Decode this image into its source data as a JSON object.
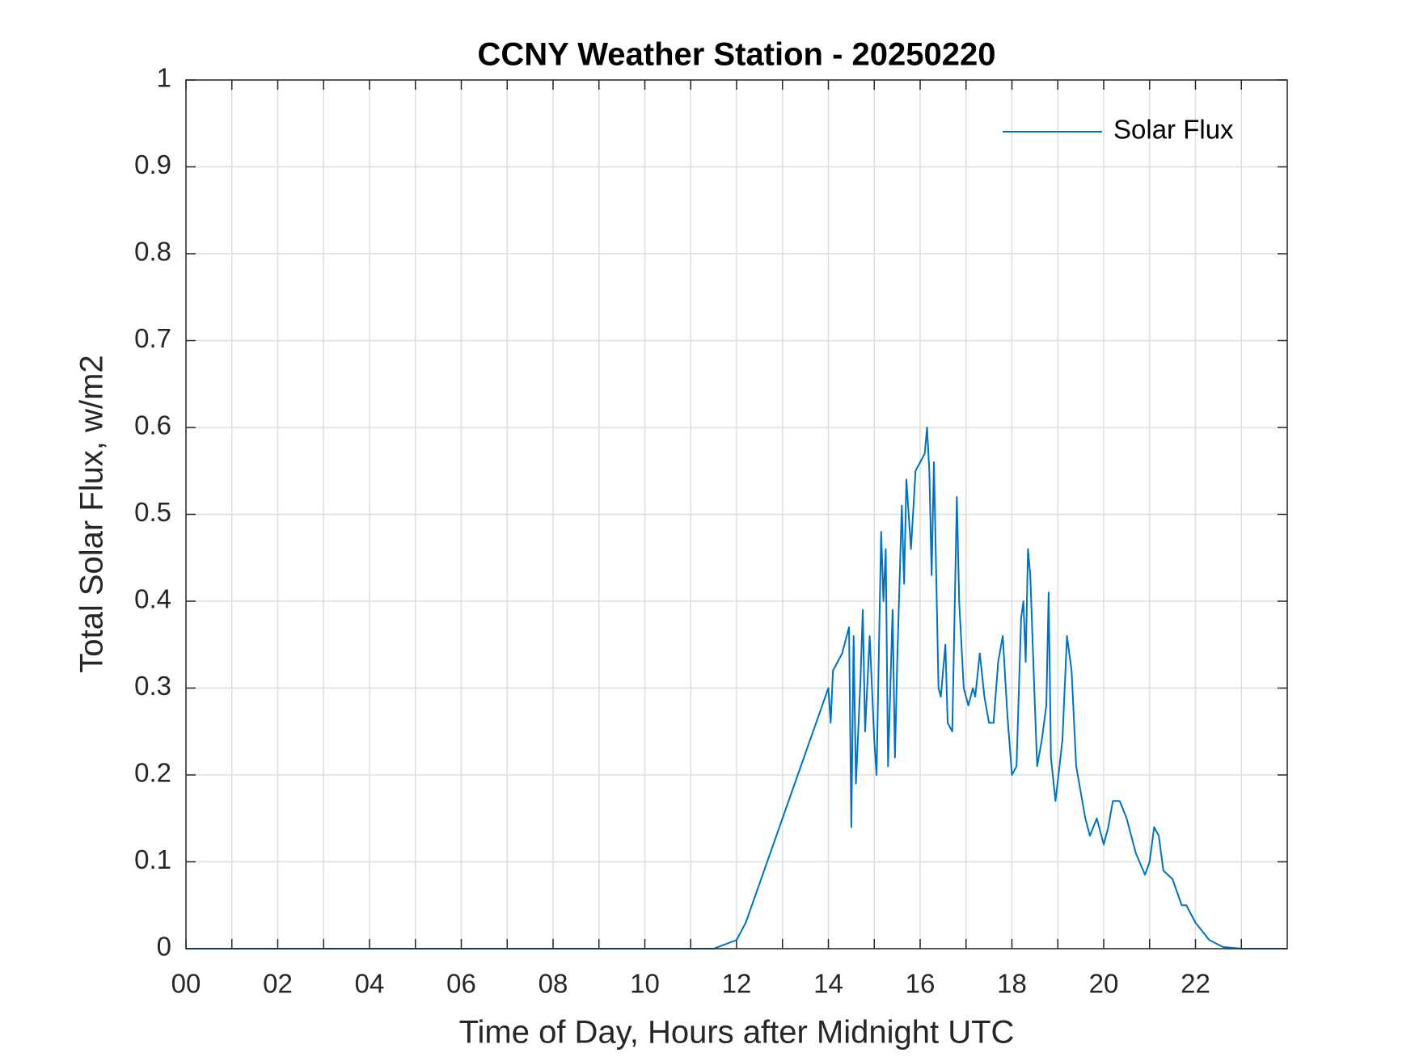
{
  "chart_data": {
    "type": "line",
    "title": "CCNY Weather Station - 20250220",
    "xlabel": "Time of Day, Hours after Midnight UTC",
    "ylabel": "Total Solar Flux, w/m2",
    "xlim": [
      0,
      24
    ],
    "ylim": [
      0,
      1
    ],
    "xticks": [
      {
        "value": 0,
        "label": "00"
      },
      {
        "value": 2,
        "label": "02"
      },
      {
        "value": 4,
        "label": "04"
      },
      {
        "value": 6,
        "label": "06"
      },
      {
        "value": 8,
        "label": "08"
      },
      {
        "value": 10,
        "label": "10"
      },
      12,
      14,
      16,
      18,
      20,
      22
    ],
    "xminorticks": [
      1,
      3,
      5,
      7,
      9,
      11,
      13,
      15,
      17,
      19,
      21,
      23
    ],
    "yticks": [
      0,
      0.1,
      0.2,
      0.3,
      0.4,
      0.5,
      0.6,
      0.7,
      0.8,
      0.9,
      1
    ],
    "grid": true,
    "legend": "upper right",
    "x": [
      0,
      11.5,
      12.0,
      12.2,
      13.0,
      14.0,
      14.05,
      14.1,
      14.3,
      14.45,
      14.5,
      14.55,
      14.6,
      14.7,
      14.75,
      14.8,
      14.9,
      15.0,
      15.05,
      15.15,
      15.2,
      15.25,
      15.3,
      15.4,
      15.45,
      15.5,
      15.6,
      15.65,
      15.7,
      15.8,
      15.9,
      16.0,
      16.1,
      16.15,
      16.2,
      16.25,
      16.3,
      16.4,
      16.45,
      16.55,
      16.6,
      16.7,
      16.8,
      16.85,
      16.95,
      17.05,
      17.15,
      17.2,
      17.3,
      17.4,
      17.5,
      17.6,
      17.7,
      17.8,
      17.9,
      18.0,
      18.1,
      18.2,
      18.25,
      18.3,
      18.35,
      18.4,
      18.5,
      18.55,
      18.65,
      18.75,
      18.8,
      18.85,
      18.95,
      19.1,
      19.2,
      19.3,
      19.4,
      19.6,
      19.7,
      19.85,
      20.0,
      20.1,
      20.2,
      20.35,
      20.5,
      20.7,
      20.9,
      21.0,
      21.1,
      21.2,
      21.3,
      21.5,
      21.7,
      21.8,
      22.0,
      22.3,
      22.6,
      23.0,
      24.0
    ],
    "series": [
      {
        "name": "Solar Flux",
        "color": "#0072bd",
        "values": [
          0,
          0,
          0.01,
          0.03,
          0.15,
          0.3,
          0.26,
          0.32,
          0.34,
          0.37,
          0.14,
          0.36,
          0.19,
          0.31,
          0.39,
          0.25,
          0.36,
          0.24,
          0.2,
          0.48,
          0.4,
          0.46,
          0.21,
          0.39,
          0.22,
          0.33,
          0.51,
          0.42,
          0.54,
          0.46,
          0.55,
          0.56,
          0.57,
          0.6,
          0.55,
          0.43,
          0.56,
          0.3,
          0.29,
          0.35,
          0.26,
          0.25,
          0.52,
          0.4,
          0.3,
          0.28,
          0.3,
          0.29,
          0.34,
          0.29,
          0.26,
          0.26,
          0.33,
          0.36,
          0.27,
          0.2,
          0.21,
          0.38,
          0.4,
          0.33,
          0.46,
          0.43,
          0.28,
          0.21,
          0.24,
          0.28,
          0.41,
          0.22,
          0.17,
          0.24,
          0.36,
          0.32,
          0.21,
          0.15,
          0.13,
          0.15,
          0.12,
          0.14,
          0.17,
          0.17,
          0.15,
          0.11,
          0.085,
          0.1,
          0.14,
          0.13,
          0.09,
          0.08,
          0.05,
          0.05,
          0.03,
          0.01,
          0.002,
          0,
          0
        ]
      }
    ]
  }
}
